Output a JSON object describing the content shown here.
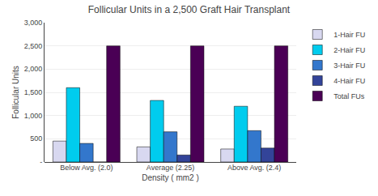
{
  "chart_data": {
    "type": "bar",
    "title": "Follicular Units in a 2,500 Graft Hair Transplant",
    "xlabel": "Density ( mm2 )",
    "ylabel": "Follicular Units",
    "categories": [
      "Below Avg. (2.0)",
      "Average (2.25)",
      "Above Avg. (2.4)"
    ],
    "series": [
      {
        "name": "1-Hair FU",
        "color": "#d8d8f0",
        "values": [
          450,
          325,
          280
        ]
      },
      {
        "name": "2-Hair FU",
        "color": "#00ccee",
        "values": [
          1600,
          1325,
          1200
        ]
      },
      {
        "name": "3-Hair FU",
        "color": "#3377cc",
        "values": [
          400,
          650,
          675
        ]
      },
      {
        "name": "4-Hair FU",
        "color": "#334499",
        "values": [
          0,
          150,
          300
        ]
      },
      {
        "name": "Total FUs",
        "color": "#4a0055",
        "values": [
          2500,
          2500,
          2500
        ]
      }
    ],
    "ylim": [
      0,
      3000
    ],
    "yticks": [
      {
        "value": 0,
        "label": "-"
      },
      500,
      {
        "value": 1000,
        "label": "1,000"
      },
      {
        "value": 1500,
        "label": "1,500"
      },
      {
        "value": 2000,
        "label": "2,000"
      },
      {
        "value": 2500,
        "label": "2,500"
      },
      {
        "value": 3000,
        "label": "3,000"
      }
    ],
    "grid": true,
    "legend": "upper right"
  }
}
